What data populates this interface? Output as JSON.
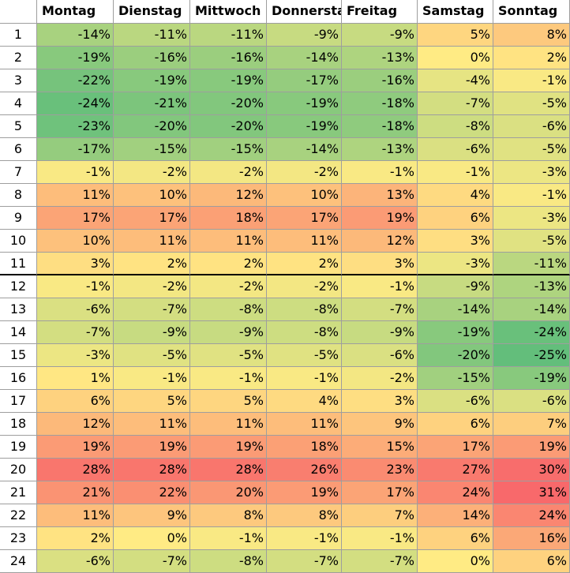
{
  "columns": [
    "Montag",
    "Dienstag",
    "Mittwoch",
    "Donnersta",
    "Freitag",
    "Samstag",
    "Sonntag"
  ],
  "rows": [
    {
      "hour": "1",
      "values": [
        "-14%",
        "-11%",
        "-11%",
        "-9%",
        "-9%",
        "5%",
        "8%"
      ],
      "nums": [
        -14,
        -11,
        -11,
        -9,
        -9,
        5,
        8
      ]
    },
    {
      "hour": "2",
      "values": [
        "-19%",
        "-16%",
        "-16%",
        "-14%",
        "-13%",
        "0%",
        "2%"
      ],
      "nums": [
        -19,
        -16,
        -16,
        -14,
        -13,
        0,
        2
      ]
    },
    {
      "hour": "3",
      "values": [
        "-22%",
        "-19%",
        "-19%",
        "-17%",
        "-16%",
        "-4%",
        "-1%"
      ],
      "nums": [
        -22,
        -19,
        -19,
        -17,
        -16,
        -4,
        -1
      ]
    },
    {
      "hour": "4",
      "values": [
        "-24%",
        "-21%",
        "-20%",
        "-19%",
        "-18%",
        "-7%",
        "-5%"
      ],
      "nums": [
        -24,
        -21,
        -20,
        -19,
        -18,
        -7,
        -5
      ]
    },
    {
      "hour": "5",
      "values": [
        "-23%",
        "-20%",
        "-20%",
        "-19%",
        "-18%",
        "-8%",
        "-6%"
      ],
      "nums": [
        -23,
        -20,
        -20,
        -19,
        -18,
        -8,
        -6
      ]
    },
    {
      "hour": "6",
      "values": [
        "-17%",
        "-15%",
        "-15%",
        "-14%",
        "-13%",
        "-6%",
        "-5%"
      ],
      "nums": [
        -17,
        -15,
        -15,
        -14,
        -13,
        -6,
        -5
      ]
    },
    {
      "hour": "7",
      "values": [
        "-1%",
        "-2%",
        "-2%",
        "-2%",
        "-1%",
        "-1%",
        "-3%"
      ],
      "nums": [
        -1,
        -2,
        -2,
        -2,
        -1,
        -1,
        -3
      ]
    },
    {
      "hour": "8",
      "values": [
        "11%",
        "10%",
        "12%",
        "10%",
        "13%",
        "4%",
        "-1%"
      ],
      "nums": [
        11,
        10,
        12,
        10,
        13,
        4,
        -1
      ]
    },
    {
      "hour": "9",
      "values": [
        "17%",
        "17%",
        "18%",
        "17%",
        "19%",
        "6%",
        "-3%"
      ],
      "nums": [
        17,
        17,
        18,
        17,
        19,
        6,
        -3
      ]
    },
    {
      "hour": "10",
      "values": [
        "10%",
        "11%",
        "11%",
        "11%",
        "12%",
        "3%",
        "-5%"
      ],
      "nums": [
        10,
        11,
        11,
        11,
        12,
        3,
        -5
      ]
    },
    {
      "hour": "11",
      "values": [
        "3%",
        "2%",
        "2%",
        "2%",
        "3%",
        "-3%",
        "-11%"
      ],
      "nums": [
        3,
        2,
        2,
        2,
        3,
        -3,
        -11
      ]
    },
    {
      "hour": "12",
      "values": [
        "-1%",
        "-2%",
        "-2%",
        "-2%",
        "-1%",
        "-9%",
        "-13%"
      ],
      "nums": [
        -1,
        -2,
        -2,
        -2,
        -1,
        -9,
        -13
      ]
    },
    {
      "hour": "13",
      "values": [
        "-6%",
        "-7%",
        "-8%",
        "-8%",
        "-7%",
        "-14%",
        "-14%"
      ],
      "nums": [
        -6,
        -7,
        -8,
        -8,
        -7,
        -14,
        -14
      ]
    },
    {
      "hour": "14",
      "values": [
        "-7%",
        "-9%",
        "-9%",
        "-8%",
        "-9%",
        "-19%",
        "-24%"
      ],
      "nums": [
        -7,
        -9,
        -9,
        -8,
        -9,
        -19,
        -24
      ]
    },
    {
      "hour": "15",
      "values": [
        "-3%",
        "-5%",
        "-5%",
        "-5%",
        "-6%",
        "-20%",
        "-25%"
      ],
      "nums": [
        -3,
        -5,
        -5,
        -5,
        -6,
        -20,
        -25
      ]
    },
    {
      "hour": "16",
      "values": [
        "1%",
        "-1%",
        "-1%",
        "-1%",
        "-2%",
        "-15%",
        "-19%"
      ],
      "nums": [
        1,
        -1,
        -1,
        -1,
        -2,
        -15,
        -19
      ]
    },
    {
      "hour": "17",
      "values": [
        "6%",
        "5%",
        "5%",
        "4%",
        "3%",
        "-6%",
        "-6%"
      ],
      "nums": [
        6,
        5,
        5,
        4,
        3,
        -6,
        -6
      ]
    },
    {
      "hour": "18",
      "values": [
        "12%",
        "11%",
        "11%",
        "11%",
        "9%",
        "6%",
        "7%"
      ],
      "nums": [
        12,
        11,
        11,
        11,
        9,
        6,
        7
      ]
    },
    {
      "hour": "19",
      "values": [
        "19%",
        "19%",
        "19%",
        "18%",
        "15%",
        "17%",
        "19%"
      ],
      "nums": [
        19,
        19,
        19,
        18,
        15,
        17,
        19
      ]
    },
    {
      "hour": "20",
      "values": [
        "28%",
        "28%",
        "28%",
        "26%",
        "23%",
        "27%",
        "30%"
      ],
      "nums": [
        28,
        28,
        28,
        26,
        23,
        27,
        30
      ]
    },
    {
      "hour": "21",
      "values": [
        "21%",
        "22%",
        "20%",
        "19%",
        "17%",
        "24%",
        "31%"
      ],
      "nums": [
        21,
        22,
        20,
        19,
        17,
        24,
        31
      ]
    },
    {
      "hour": "22",
      "values": [
        "11%",
        "9%",
        "8%",
        "8%",
        "7%",
        "14%",
        "24%"
      ],
      "nums": [
        11,
        9,
        8,
        8,
        7,
        14,
        24
      ]
    },
    {
      "hour": "23",
      "values": [
        "2%",
        "0%",
        "-1%",
        "-1%",
        "-1%",
        "6%",
        "16%"
      ],
      "nums": [
        2,
        0,
        -1,
        -1,
        -1,
        6,
        16
      ]
    },
    {
      "hour": "24",
      "values": [
        "-6%",
        "-7%",
        "-8%",
        "-7%",
        "-7%",
        "0%",
        "6%"
      ],
      "nums": [
        -6,
        -7,
        -8,
        -7,
        -7,
        0,
        6
      ]
    }
  ],
  "scale": {
    "min": -25,
    "mid": 0,
    "max": 31,
    "min_color": "#63be7b",
    "mid_color": "#ffeb84",
    "max_color": "#f8696b"
  }
}
